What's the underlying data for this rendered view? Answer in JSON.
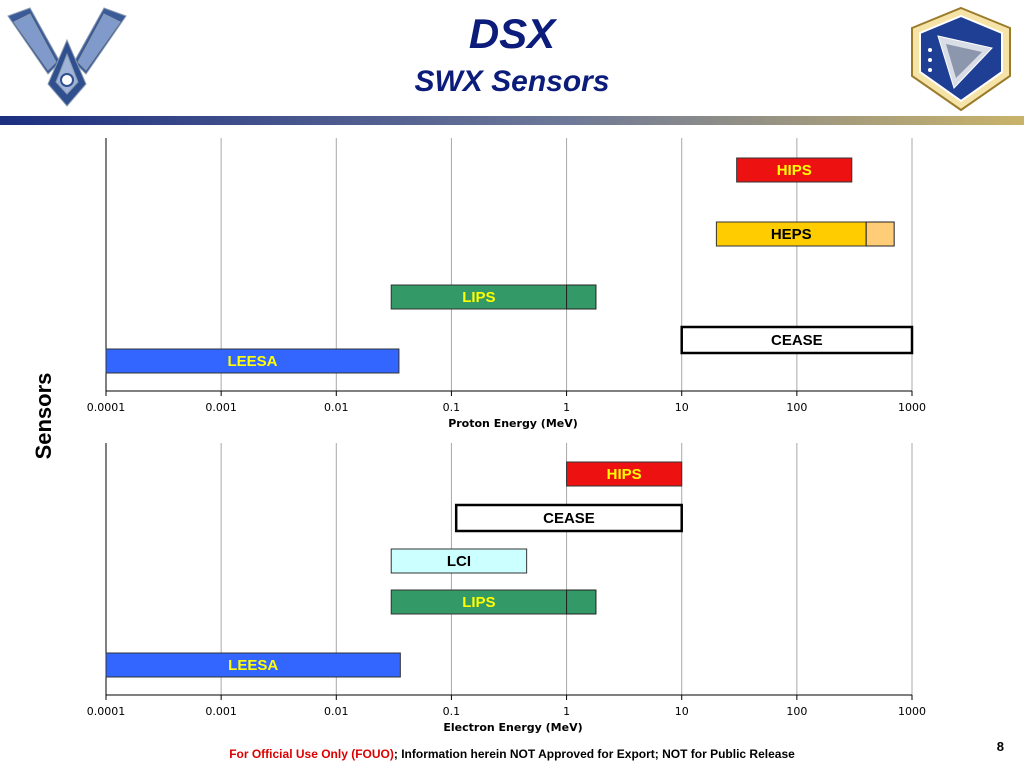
{
  "header": {
    "title": "DSX",
    "subtitle": "SWX Sensors"
  },
  "colors": {
    "title": "#0c1c7a",
    "header_bar_start": "#1c2f80",
    "header_bar_end": "#c9b36a",
    "hips": "#ee1111",
    "heps": "#ffcc00",
    "heps_ext": "#ffcc77",
    "lips": "#339966",
    "leesa": "#3366ff",
    "lci": "#ccffff",
    "cease": "#ffffff"
  },
  "ylabel": "Sensors",
  "chart_data": [
    {
      "type": "bar",
      "orientation": "horizontal-range",
      "xscale": "log",
      "xlim": [
        0.0001,
        1000
      ],
      "xticks": [
        "0.0001",
        "0.001",
        "0.01",
        "0.1",
        "1",
        "10",
        "100",
        "1000"
      ],
      "xlabel": "Proton Energy (MeV)",
      "grid": true,
      "bars": [
        {
          "label": "HIPS",
          "start": 30,
          "end": 300,
          "color": "#ee1111",
          "text_color": "#ffff00",
          "ext_end": null,
          "ext_color": null
        },
        {
          "label": "HEPS",
          "start": 20,
          "end": 400,
          "color": "#ffcc00",
          "text_color": "#000000",
          "ext_end": 700,
          "ext_color": "#ffcc77"
        },
        {
          "label": "LIPS",
          "start": 0.03,
          "end": 1,
          "color": "#339966",
          "text_color": "#ffff00",
          "ext_end": 1.8,
          "ext_color": "#339966"
        },
        {
          "label": "CEASE",
          "start": 10,
          "end": 1000,
          "color": "#ffffff",
          "text_color": "#000000",
          "ext_end": null,
          "ext_color": null
        },
        {
          "label": "LEESA",
          "start": 0.0001,
          "end": 0.035,
          "color": "#3366ff",
          "text_color": "#ffff00",
          "ext_end": null,
          "ext_color": null
        }
      ]
    },
    {
      "type": "bar",
      "orientation": "horizontal-range",
      "xscale": "log",
      "xlim": [
        0.0001,
        1000
      ],
      "xticks": [
        "0.0001",
        "0.001",
        "0.01",
        "0.1",
        "1",
        "10",
        "100",
        "1000"
      ],
      "xlabel": "Electron Energy (MeV)",
      "grid": true,
      "bars": [
        {
          "label": "HIPS",
          "start": 1,
          "end": 10,
          "color": "#ee1111",
          "text_color": "#ffff00",
          "ext_end": null,
          "ext_color": null
        },
        {
          "label": "CEASE",
          "start": 0.11,
          "end": 10,
          "color": "#ffffff",
          "text_color": "#000000",
          "ext_end": null,
          "ext_color": null
        },
        {
          "label": "LCI",
          "start": 0.03,
          "end": 0.45,
          "color": "#ccffff",
          "text_color": "#000000",
          "ext_end": null,
          "ext_color": null
        },
        {
          "label": "LIPS",
          "start": 0.03,
          "end": 1,
          "color": "#339966",
          "text_color": "#ffff00",
          "ext_end": 1.8,
          "ext_color": "#339966"
        },
        {
          "label": "LEESA",
          "start": 0.0001,
          "end": 0.036,
          "color": "#3366ff",
          "text_color": "#ffff00",
          "ext_end": null,
          "ext_color": null
        }
      ]
    }
  ],
  "footer": {
    "fouo": "For Official Use Only (FOUO)",
    "rest": "; Information herein NOT Approved for Export;  NOT for Public Release"
  },
  "page_number": "8"
}
